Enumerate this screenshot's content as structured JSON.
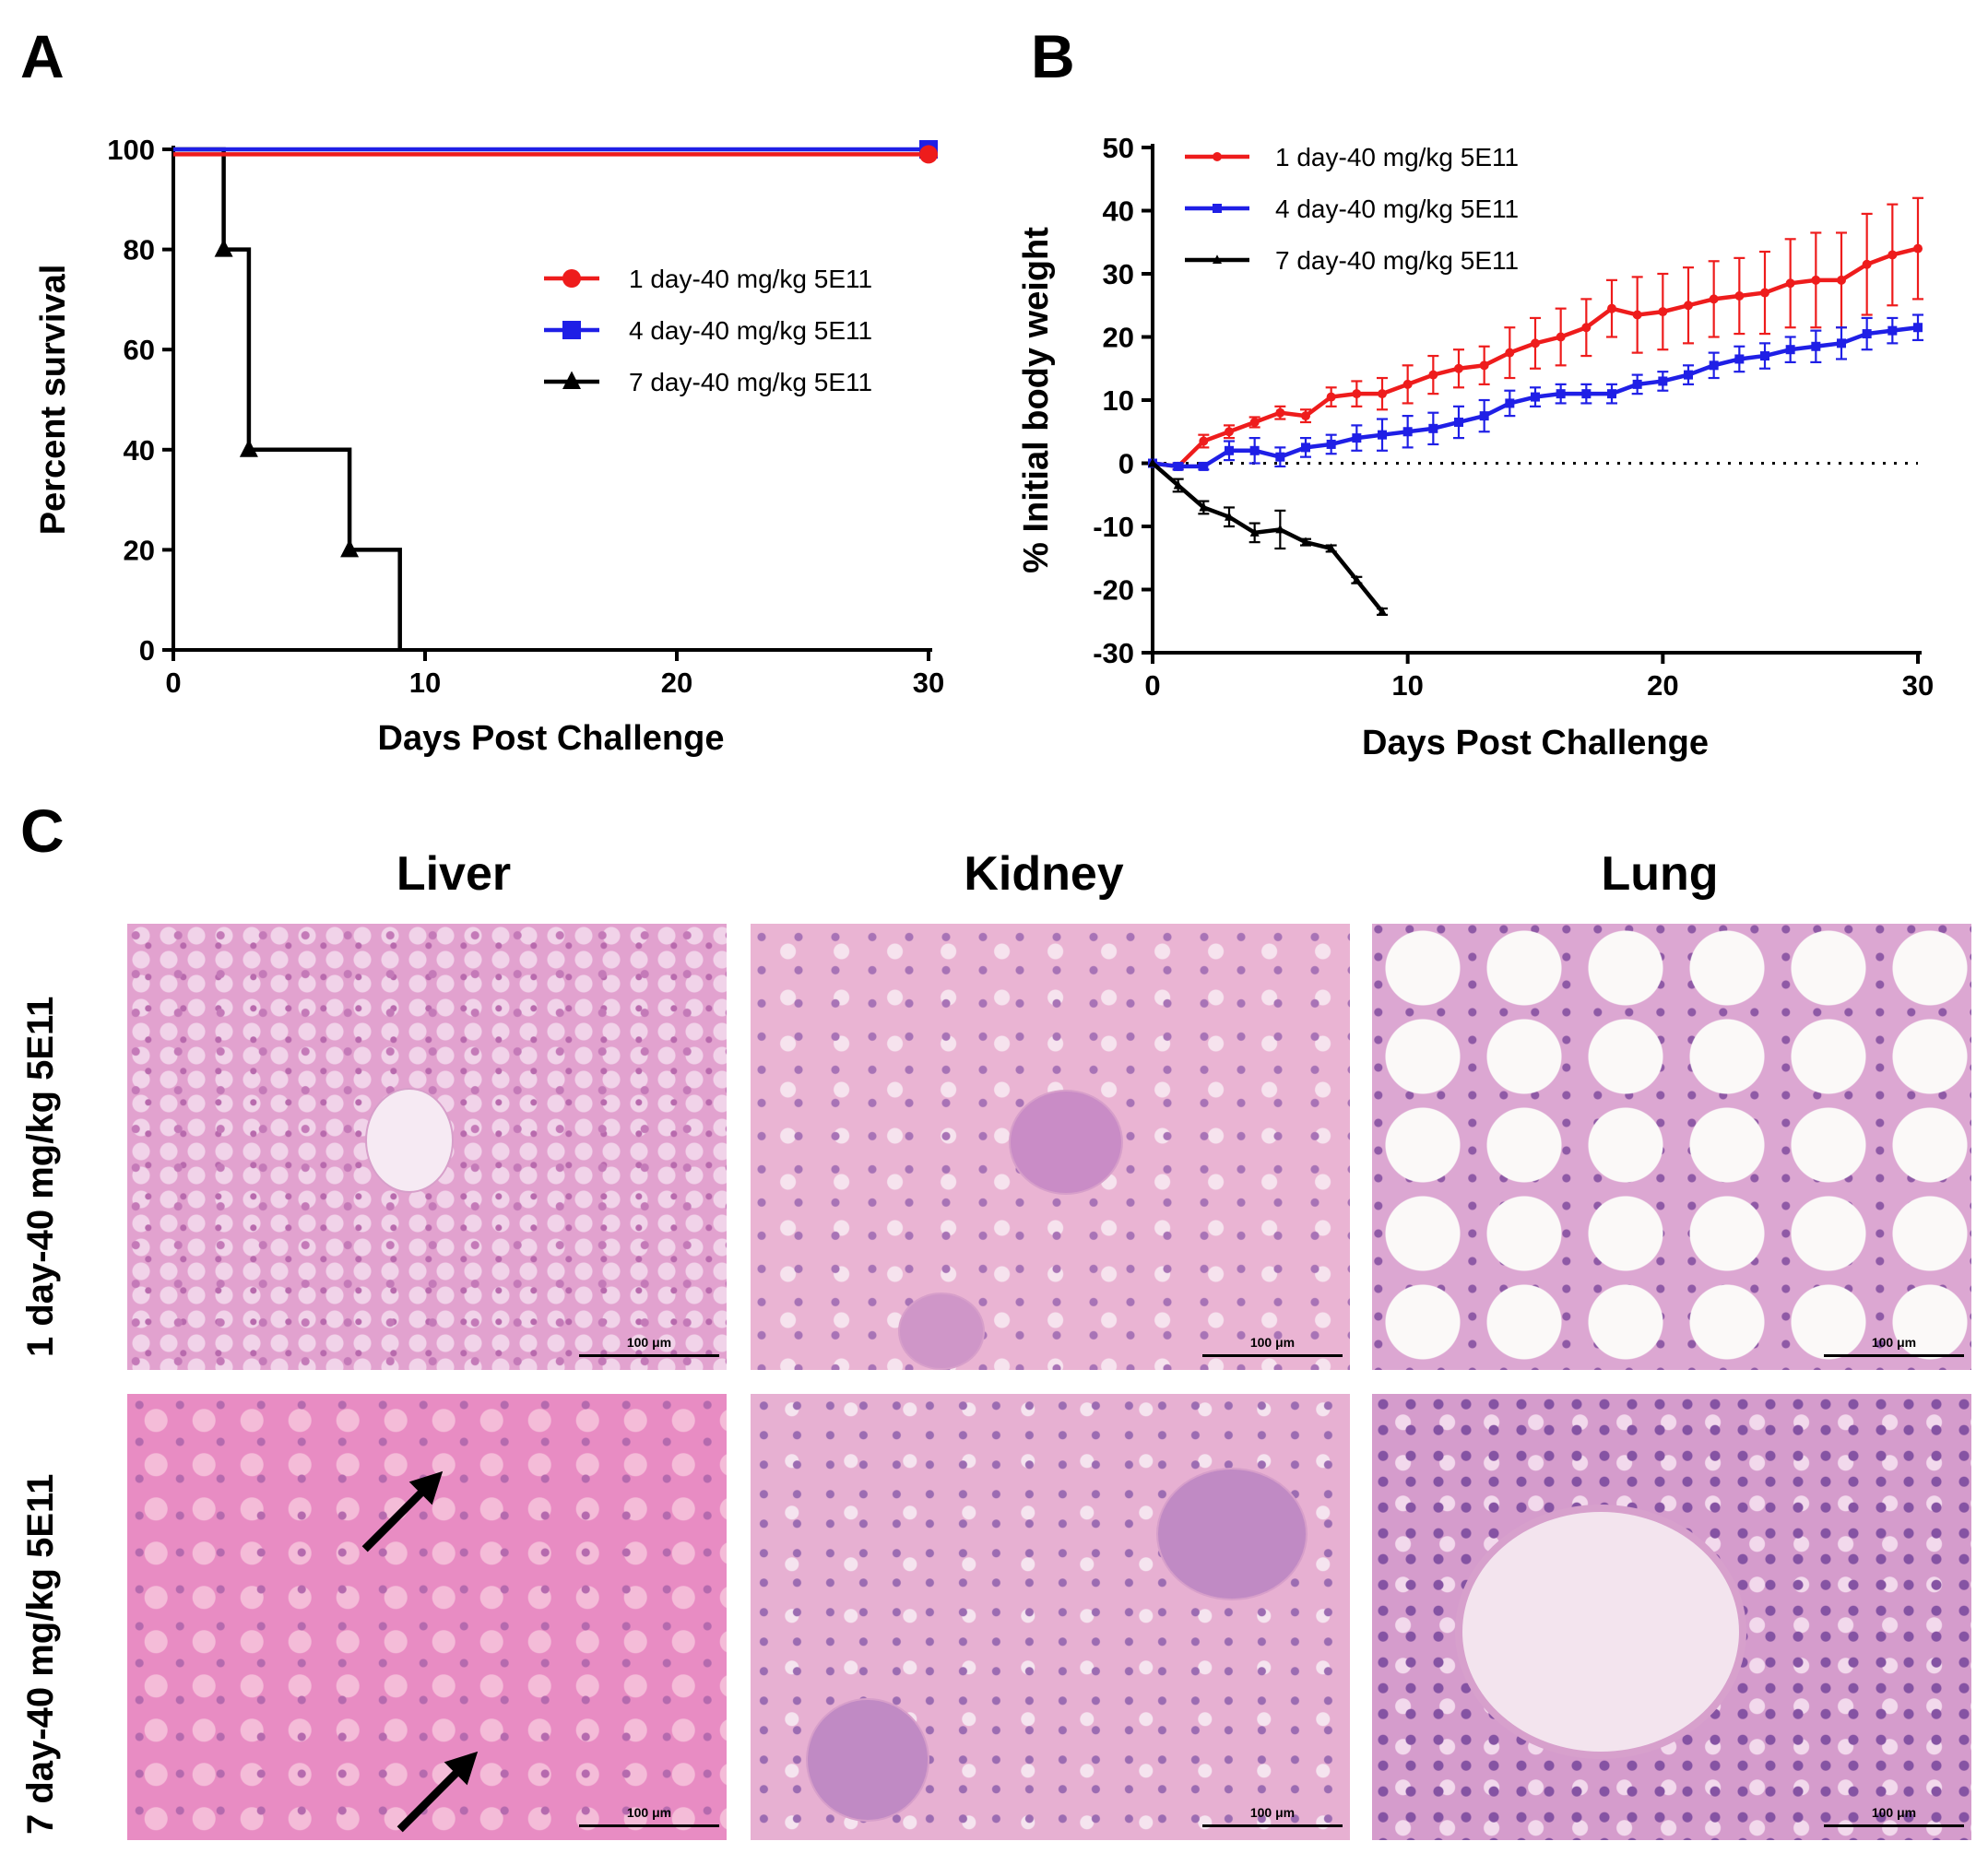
{
  "panels": {
    "a_label": "A",
    "b_label": "B",
    "c_label": "C"
  },
  "chart_data": [
    {
      "type": "line",
      "panel": "A",
      "xlabel": "Days Post Challenge",
      "ylabel": "Percent survival",
      "xlim": [
        0,
        30
      ],
      "ylim": [
        0,
        100
      ],
      "xticks": [
        0,
        10,
        20,
        30
      ],
      "yticks": [
        0,
        20,
        40,
        60,
        80,
        100
      ],
      "legend_position": "right",
      "step": true,
      "series": [
        {
          "name": "1 day-40 mg/kg 5E11",
          "color": "#ee1c1c",
          "marker": "circle",
          "points": [
            [
              0,
              99
            ],
            [
              30,
              99
            ]
          ],
          "marker_points": [
            [
              30,
              99
            ]
          ]
        },
        {
          "name": "4 day-40 mg/kg 5E11",
          "color": "#1f1fe6",
          "marker": "square",
          "points": [
            [
              0,
              100
            ],
            [
              30,
              100
            ]
          ],
          "marker_points": [
            [
              30,
              100
            ]
          ]
        },
        {
          "name": "7 day-40 mg/kg 5E11",
          "color": "#000000",
          "marker": "triangle",
          "points": [
            [
              0,
              100
            ],
            [
              2,
              100
            ],
            [
              2,
              80
            ],
            [
              3,
              80
            ],
            [
              3,
              40
            ],
            [
              7,
              40
            ],
            [
              7,
              20
            ],
            [
              9,
              20
            ],
            [
              9,
              0
            ]
          ],
          "marker_points": [
            [
              2,
              80
            ],
            [
              3,
              40
            ],
            [
              7,
              20
            ]
          ]
        }
      ]
    },
    {
      "type": "line",
      "panel": "B",
      "xlabel": "Days Post Challenge",
      "ylabel": "% Initial body weight",
      "xlim": [
        0,
        30
      ],
      "ylim": [
        -30,
        50
      ],
      "xticks": [
        0,
        10,
        20,
        30
      ],
      "yticks": [
        -30,
        -20,
        -10,
        0,
        10,
        20,
        30,
        40,
        50
      ],
      "reference_line": 0,
      "legend_position": "top-left",
      "series": [
        {
          "name": "1 day-40 mg/kg 5E11",
          "color": "#ee1c1c",
          "x": [
            0,
            1,
            2,
            3,
            4,
            5,
            6,
            7,
            8,
            9,
            10,
            11,
            12,
            13,
            14,
            15,
            16,
            17,
            18,
            19,
            20,
            21,
            22,
            23,
            24,
            25,
            26,
            27,
            28,
            29,
            30
          ],
          "y": [
            0,
            -0.5,
            3.5,
            5,
            6.5,
            8,
            7.5,
            10.5,
            11,
            11,
            12.5,
            14,
            15,
            15.5,
            17.5,
            19,
            20,
            21.5,
            24.5,
            23.5,
            24,
            25,
            26,
            26.5,
            27,
            28.5,
            29,
            29,
            31.5,
            33,
            34
          ],
          "err": [
            0,
            0.5,
            1,
            1,
            0.8,
            1,
            1,
            1.5,
            2,
            2.5,
            3,
            3,
            3,
            3,
            4,
            4,
            4.5,
            4.5,
            4.5,
            6,
            6,
            6,
            6,
            6,
            6.5,
            7,
            7.5,
            7.5,
            8,
            8,
            8
          ]
        },
        {
          "name": "4 day-40 mg/kg 5E11",
          "color": "#1f1fe6",
          "x": [
            0,
            1,
            2,
            3,
            4,
            5,
            6,
            7,
            8,
            9,
            10,
            11,
            12,
            13,
            14,
            15,
            16,
            17,
            18,
            19,
            20,
            21,
            22,
            23,
            24,
            25,
            26,
            27,
            28,
            29,
            30
          ],
          "y": [
            0,
            -0.5,
            -0.5,
            2,
            2,
            1,
            2.5,
            3,
            4,
            4.5,
            5,
            5.5,
            6.5,
            7.5,
            9.5,
            10.5,
            11,
            11,
            11,
            12.5,
            13,
            14,
            15.5,
            16.5,
            17,
            18,
            18.5,
            19,
            20.5,
            21,
            21.5
          ],
          "err": [
            0,
            0.5,
            0.5,
            1.5,
            2,
            1.5,
            1.5,
            1.5,
            2,
            2.5,
            2.5,
            2.5,
            2.5,
            2.5,
            2,
            1.5,
            1.5,
            1.5,
            1.5,
            1.5,
            1.5,
            1.5,
            2,
            2,
            2,
            2,
            2.5,
            2.5,
            2.5,
            2,
            2
          ]
        },
        {
          "name": "7 day-40 mg/kg 5E11",
          "color": "#000000",
          "x": [
            0,
            1,
            2,
            3,
            4,
            5,
            6,
            7,
            8,
            9
          ],
          "y": [
            0,
            -3.5,
            -7,
            -8.5,
            -11,
            -10.5,
            -12.5,
            -13.5,
            -18.5,
            -23.5
          ],
          "err": [
            0,
            1,
            1,
            1.5,
            1.5,
            3,
            0.5,
            0.5,
            0.5,
            0.5
          ]
        }
      ]
    }
  ],
  "histology": {
    "columns": [
      "Liver",
      "Kidney",
      "Lung"
    ],
    "rows": [
      "1 day-40 mg/kg 5E11",
      "7 day-40 mg/kg 5E11"
    ],
    "scale_bar_label": "100 μm"
  }
}
